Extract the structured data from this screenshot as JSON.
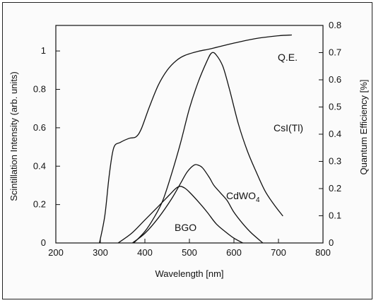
{
  "chart_data": {
    "type": "line",
    "xlabel": "Wavelength [nm]",
    "ylabel_left": "Scintillation Intensity (arb. units)",
    "ylabel_right": "Quantum Efficiency [%]",
    "xlim": [
      200,
      800
    ],
    "ylim_left": [
      0,
      1.133
    ],
    "ylim_right": [
      0,
      0.8
    ],
    "x_ticks": [
      200,
      300,
      400,
      500,
      600,
      700,
      800
    ],
    "y_left_ticks": [
      0,
      0.2,
      0.4,
      0.6,
      0.8,
      1
    ],
    "y_right_ticks": [
      0,
      0.1,
      0.2,
      0.3,
      0.4,
      0.5,
      0.6,
      0.7,
      0.8
    ],
    "grid": false,
    "series": [
      {
        "name": "Q.E.",
        "axis": "right",
        "label": "Q.E.",
        "points": [
          [
            298,
            0
          ],
          [
            310,
            0.1
          ],
          [
            320,
            0.25
          ],
          [
            330,
            0.35
          ],
          [
            345,
            0.37
          ],
          [
            365,
            0.385
          ],
          [
            380,
            0.39
          ],
          [
            392,
            0.42
          ],
          [
            410,
            0.5
          ],
          [
            430,
            0.58
          ],
          [
            450,
            0.635
          ],
          [
            470,
            0.67
          ],
          [
            490,
            0.69
          ],
          [
            520,
            0.705
          ],
          [
            550,
            0.715
          ],
          [
            600,
            0.735
          ],
          [
            650,
            0.752
          ],
          [
            700,
            0.762
          ],
          [
            730,
            0.765
          ]
        ]
      },
      {
        "name": "CsI(Tl)",
        "axis": "left",
        "label": "CsI(Tl)",
        "points": [
          [
            375,
            0
          ],
          [
            400,
            0.06
          ],
          [
            420,
            0.13
          ],
          [
            440,
            0.22
          ],
          [
            460,
            0.36
          ],
          [
            480,
            0.52
          ],
          [
            500,
            0.7
          ],
          [
            520,
            0.84
          ],
          [
            540,
            0.95
          ],
          [
            550,
            0.99
          ],
          [
            560,
            0.98
          ],
          [
            575,
            0.92
          ],
          [
            590,
            0.8
          ],
          [
            610,
            0.62
          ],
          [
            630,
            0.48
          ],
          [
            650,
            0.37
          ],
          [
            670,
            0.27
          ],
          [
            690,
            0.2
          ],
          [
            710,
            0.14
          ]
        ]
      },
      {
        "name": "CdWO4",
        "axis": "left",
        "label": "CdWO",
        "label_subscript": "4",
        "points": [
          [
            372,
            0
          ],
          [
            400,
            0.05
          ],
          [
            430,
            0.13
          ],
          [
            460,
            0.23
          ],
          [
            480,
            0.31
          ],
          [
            495,
            0.37
          ],
          [
            510,
            0.405
          ],
          [
            520,
            0.405
          ],
          [
            530,
            0.39
          ],
          [
            545,
            0.34
          ],
          [
            555,
            0.3
          ],
          [
            570,
            0.26
          ],
          [
            585,
            0.22
          ],
          [
            600,
            0.16
          ],
          [
            620,
            0.1
          ],
          [
            640,
            0.05
          ],
          [
            665,
            0
          ]
        ]
      },
      {
        "name": "BGO",
        "axis": "left",
        "label": "BGO",
        "points": [
          [
            340,
            0
          ],
          [
            370,
            0.05
          ],
          [
            400,
            0.12
          ],
          [
            430,
            0.19
          ],
          [
            455,
            0.25
          ],
          [
            470,
            0.285
          ],
          [
            480,
            0.295
          ],
          [
            490,
            0.285
          ],
          [
            500,
            0.265
          ],
          [
            520,
            0.215
          ],
          [
            540,
            0.16
          ],
          [
            560,
            0.1
          ],
          [
            580,
            0.06
          ],
          [
            600,
            0.025
          ],
          [
            620,
            0
          ]
        ]
      }
    ]
  }
}
